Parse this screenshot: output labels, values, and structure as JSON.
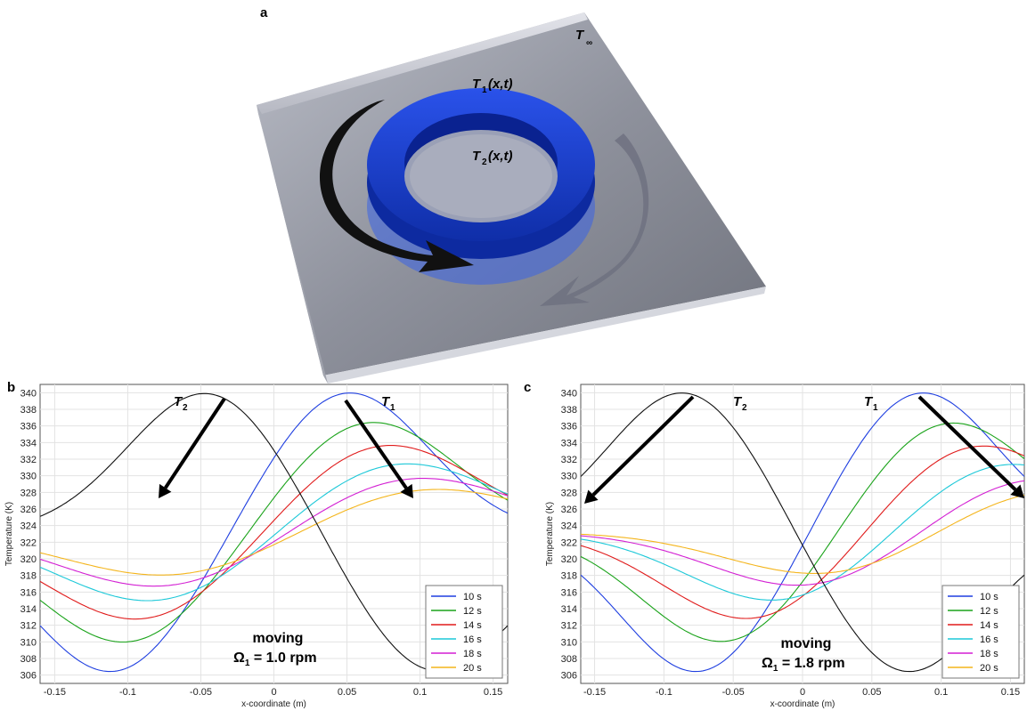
{
  "panel_a": {
    "label": "a",
    "labels": {
      "t_inf": "T",
      "t_inf_sub": "∞",
      "t1": "T",
      "t1_sub": "1",
      "t1_args": "(x,t)",
      "t2": "T",
      "t2_sub": "2",
      "t2_args": "(x,t)"
    },
    "colors": {
      "ring": "#1a3fd6",
      "ring_dark": "#0d2aa0",
      "plate": "#8a8d99",
      "arrow_front": "#111111",
      "arrow_back": "#6e7180"
    }
  },
  "chart_data": [
    {
      "type": "line",
      "panel_label": "b",
      "xlabel": "x-coordinate (m)",
      "ylabel": "Temperature (K)",
      "xlim": [
        -0.16,
        0.16
      ],
      "ylim": [
        305,
        341
      ],
      "x_ticks": [
        "-0.15",
        "-0.1",
        "-0.05",
        "0",
        "0.05",
        "0.1",
        "0.15"
      ],
      "y_ticks": [
        "306",
        "308",
        "310",
        "312",
        "314",
        "316",
        "318",
        "320",
        "322",
        "324",
        "326",
        "328",
        "330",
        "332",
        "334",
        "336",
        "338",
        "340"
      ],
      "grid": true,
      "legend_position": "bottom-right",
      "annotation_line1": "moving",
      "annotation_line2": "Ω",
      "annotation_sub": "1",
      "annotation_rest": " = 1.0 rpm",
      "curve_labels": [
        {
          "text": "T",
          "sub": "2"
        },
        {
          "text": "T",
          "sub": "1"
        }
      ],
      "series": [
        {
          "name": "10 s",
          "color": "#1f3fe0",
          "pulses": [
            {
              "center": -0.11,
              "amp": -17.0,
              "sigma": 0.055
            },
            {
              "center": 0.05,
              "amp": 17.0,
              "sigma": 0.055
            }
          ]
        },
        {
          "name": "12 s",
          "color": "#1aa31a",
          "pulses": [
            {
              "center": -0.1,
              "amp": -13.5,
              "sigma": 0.06
            },
            {
              "center": 0.065,
              "amp": 13.5,
              "sigma": 0.06
            }
          ]
        },
        {
          "name": "14 s",
          "color": "#e01b1b",
          "pulses": [
            {
              "center": -0.09,
              "amp": -10.8,
              "sigma": 0.064
            },
            {
              "center": 0.075,
              "amp": 10.8,
              "sigma": 0.064
            }
          ]
        },
        {
          "name": "16 s",
          "color": "#1cc8d8",
          "pulses": [
            {
              "center": -0.08,
              "amp": -8.6,
              "sigma": 0.067
            },
            {
              "center": 0.085,
              "amp": 8.6,
              "sigma": 0.067
            }
          ]
        },
        {
          "name": "18 s",
          "color": "#d31fd3",
          "pulses": [
            {
              "center": -0.075,
              "amp": -6.8,
              "sigma": 0.07
            },
            {
              "center": 0.095,
              "amp": 6.8,
              "sigma": 0.07
            }
          ]
        },
        {
          "name": "20 s",
          "color": "#f4b51c",
          "pulses": [
            {
              "center": -0.07,
              "amp": -5.4,
              "sigma": 0.072
            },
            {
              "center": 0.105,
              "amp": 5.4,
              "sigma": 0.072
            }
          ]
        },
        {
          "name": "",
          "color": "#111111",
          "pulses": [
            {
              "center": -0.045,
              "amp": 17.0,
              "sigma": 0.055
            },
            {
              "center": 0.11,
              "amp": -17.0,
              "sigma": 0.055
            }
          ]
        }
      ]
    },
    {
      "type": "line",
      "panel_label": "c",
      "xlabel": "x-coordinate (m)",
      "ylabel": "Temperature (K)",
      "xlim": [
        -0.16,
        0.16
      ],
      "ylim": [
        305,
        341
      ],
      "x_ticks": [
        "-0.15",
        "-0.1",
        "-0.05",
        "0",
        "0.05",
        "0.1",
        "0.15"
      ],
      "y_ticks": [
        "306",
        "308",
        "310",
        "312",
        "314",
        "316",
        "318",
        "320",
        "322",
        "324",
        "326",
        "328",
        "330",
        "332",
        "334",
        "336",
        "338",
        "340"
      ],
      "grid": true,
      "legend_position": "bottom-right",
      "annotation_line1": "moving",
      "annotation_line2": "Ω",
      "annotation_sub": "1",
      "annotation_rest": " = 1.8 rpm",
      "curve_labels": [
        {
          "text": "T",
          "sub": "2"
        },
        {
          "text": "T",
          "sub": "1"
        }
      ],
      "series": [
        {
          "name": "10 s",
          "color": "#1f3fe0",
          "pulses": [
            {
              "center": -0.075,
              "amp": -17.0,
              "sigma": 0.055
            },
            {
              "center": 0.085,
              "amp": 17.0,
              "sigma": 0.055
            }
          ]
        },
        {
          "name": "12 s",
          "color": "#1aa31a",
          "pulses": [
            {
              "center": -0.055,
              "amp": -13.5,
              "sigma": 0.06
            },
            {
              "center": 0.105,
              "amp": 13.5,
              "sigma": 0.06
            }
          ]
        },
        {
          "name": "14 s",
          "color": "#e01b1b",
          "pulses": [
            {
              "center": -0.035,
              "amp": -10.8,
              "sigma": 0.064
            },
            {
              "center": 0.125,
              "amp": 10.8,
              "sigma": 0.064
            }
          ]
        },
        {
          "name": "16 s",
          "color": "#1cc8d8",
          "pulses": [
            {
              "center": -0.015,
              "amp": -8.6,
              "sigma": 0.067
            },
            {
              "center": 0.145,
              "amp": 8.6,
              "sigma": 0.067
            }
          ]
        },
        {
          "name": "18 s",
          "color": "#d31fd3",
          "pulses": [
            {
              "center": 0.005,
              "amp": -6.8,
              "sigma": 0.07
            },
            {
              "center": 0.165,
              "amp": 6.8,
              "sigma": 0.07
            }
          ]
        },
        {
          "name": "20 s",
          "color": "#f4b51c",
          "pulses": [
            {
              "center": 0.02,
              "amp": -5.4,
              "sigma": 0.072
            },
            {
              "center": 0.175,
              "amp": 5.4,
              "sigma": 0.072
            }
          ]
        },
        {
          "name": "",
          "color": "#111111",
          "pulses": [
            {
              "center": -0.085,
              "amp": 17.0,
              "sigma": 0.055
            },
            {
              "center": 0.075,
              "amp": -17.0,
              "sigma": 0.055
            }
          ]
        }
      ]
    }
  ]
}
